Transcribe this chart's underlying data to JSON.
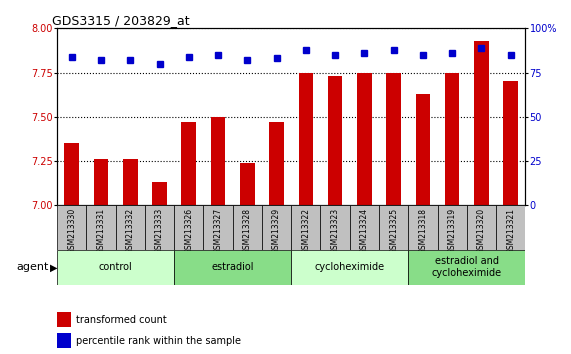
{
  "title": "GDS3315 / 203829_at",
  "samples": [
    "GSM213330",
    "GSM213331",
    "GSM213332",
    "GSM213333",
    "GSM213326",
    "GSM213327",
    "GSM213328",
    "GSM213329",
    "GSM213322",
    "GSM213323",
    "GSM213324",
    "GSM213325",
    "GSM213318",
    "GSM213319",
    "GSM213320",
    "GSM213321"
  ],
  "bar_values": [
    7.35,
    7.26,
    7.26,
    7.13,
    7.47,
    7.5,
    7.24,
    7.47,
    7.75,
    7.73,
    7.75,
    7.75,
    7.63,
    7.75,
    7.93,
    7.7
  ],
  "dot_values": [
    84,
    82,
    82,
    80,
    84,
    85,
    82,
    83,
    88,
    85,
    86,
    88,
    85,
    86,
    89,
    85
  ],
  "bar_color": "#cc0000",
  "dot_color": "#0000cc",
  "ylim_left": [
    7.0,
    8.0
  ],
  "ylim_right": [
    0,
    100
  ],
  "yticks_left": [
    7.0,
    7.25,
    7.5,
    7.75,
    8.0
  ],
  "yticks_right": [
    0,
    25,
    50,
    75,
    100
  ],
  "ytick_labels_right": [
    "0",
    "25",
    "50",
    "75",
    "100%"
  ],
  "groups": [
    {
      "label": "control",
      "start": 0,
      "end": 4
    },
    {
      "label": "estradiol",
      "start": 4,
      "end": 8
    },
    {
      "label": "cycloheximide",
      "start": 8,
      "end": 12
    },
    {
      "label": "estradiol and\ncycloheximide",
      "start": 12,
      "end": 16
    }
  ],
  "group_colors": [
    "#ccffcc",
    "#88dd88",
    "#ccffcc",
    "#88dd88"
  ],
  "agent_label": "agent",
  "legend_bar_label": "transformed count",
  "legend_dot_label": "percentile rank within the sample",
  "background_color": "#ffffff",
  "plot_bg_color": "#ffffff",
  "tick_label_color_left": "#cc0000",
  "tick_label_color_right": "#0000cc",
  "dotted_grid_color": "#000000",
  "sample_bg_color": "#c0c0c0",
  "bar_width": 0.5
}
